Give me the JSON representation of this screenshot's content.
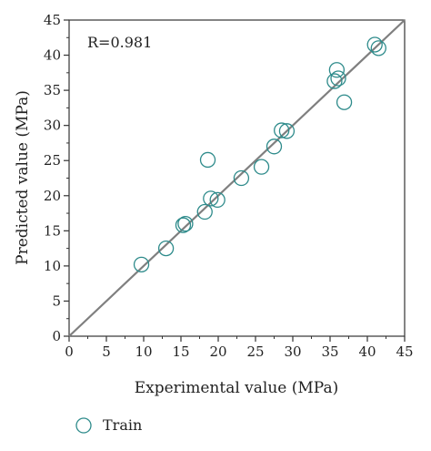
{
  "chart_data": {
    "type": "scatter",
    "xlabel": "Experimental value (MPa)",
    "ylabel": "Predicted value (MPa)",
    "xlim": [
      0,
      45
    ],
    "ylim": [
      0,
      45
    ],
    "xticks": [
      0,
      5,
      10,
      15,
      20,
      25,
      30,
      35,
      40,
      45
    ],
    "yticks": [
      0,
      5,
      10,
      15,
      20,
      25,
      30,
      35,
      40,
      45
    ],
    "grid": false,
    "legend_position": "bottom-left",
    "annotation": "R=0.981",
    "reference_line": {
      "from": [
        0,
        0
      ],
      "to": [
        45,
        45
      ],
      "color": "#7f7f7f"
    },
    "series": [
      {
        "name": "Train",
        "marker": "open-circle",
        "color": "#2e8b8b",
        "points": [
          {
            "x": 9.7,
            "y": 10.2
          },
          {
            "x": 13.0,
            "y": 12.5
          },
          {
            "x": 15.3,
            "y": 15.8
          },
          {
            "x": 15.6,
            "y": 16.0
          },
          {
            "x": 18.2,
            "y": 17.7
          },
          {
            "x": 18.6,
            "y": 25.1
          },
          {
            "x": 19.0,
            "y": 19.6
          },
          {
            "x": 19.9,
            "y": 19.4
          },
          {
            "x": 23.1,
            "y": 22.5
          },
          {
            "x": 25.8,
            "y": 24.1
          },
          {
            "x": 27.5,
            "y": 27.0
          },
          {
            "x": 28.5,
            "y": 29.3
          },
          {
            "x": 29.2,
            "y": 29.2
          },
          {
            "x": 35.6,
            "y": 36.3
          },
          {
            "x": 35.9,
            "y": 37.9
          },
          {
            "x": 36.1,
            "y": 36.7
          },
          {
            "x": 36.9,
            "y": 33.3
          },
          {
            "x": 41.0,
            "y": 41.5
          },
          {
            "x": 41.5,
            "y": 41.0
          }
        ]
      }
    ]
  }
}
